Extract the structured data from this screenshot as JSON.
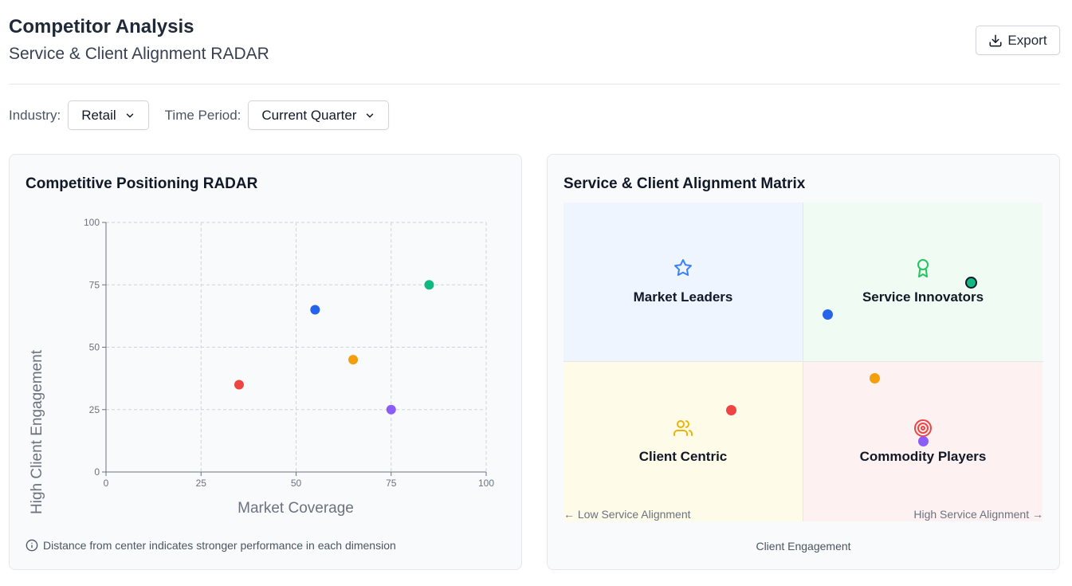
{
  "header": {
    "title": "Competitor Analysis",
    "subtitle": "Service & Client Alignment RADAR",
    "export_label": "Export"
  },
  "filters": {
    "industry_label": "Industry:",
    "industry_value": "Retail",
    "period_label": "Time Period:",
    "period_value": "Current Quarter"
  },
  "radar_panel": {
    "title": "Competitive Positioning RADAR",
    "note": "Distance from center indicates stronger performance in each dimension"
  },
  "chart_data": {
    "type": "scatter",
    "xlabel": "Market Coverage",
    "ylabel": "High Client Engagement",
    "xlim": [
      0,
      100
    ],
    "ylim": [
      0,
      100
    ],
    "xticks": [
      0,
      25,
      50,
      75,
      100
    ],
    "yticks": [
      0,
      25,
      50,
      75,
      100
    ],
    "grid": true,
    "points": [
      {
        "x": 35,
        "y": 35,
        "color": "#ef4444"
      },
      {
        "x": 55,
        "y": 65,
        "color": "#2563eb"
      },
      {
        "x": 65,
        "y": 45,
        "color": "#f59e0b"
      },
      {
        "x": 75,
        "y": 25,
        "color": "#8b5cf6"
      },
      {
        "x": 85,
        "y": 75,
        "color": "#10b981"
      }
    ]
  },
  "matrix_panel": {
    "title": "Service & Client Alignment Matrix",
    "quadrants": {
      "top_left": "Market Leaders",
      "top_right": "Service Innovators",
      "bottom_left": "Client Centric",
      "bottom_right": "Commodity Players"
    },
    "axis_left": "← Low Service Alignment",
    "axis_right": "High Service Alignment →",
    "axis_bottom": "Client Engagement",
    "icons": {
      "top_left": "star-icon",
      "top_right": "award-icon",
      "bottom_left": "users-icon",
      "bottom_right": "target-icon"
    },
    "colors": {
      "star": "#3b82f6",
      "award": "#22c55e",
      "users": "#eab308",
      "target": "#ef4444"
    }
  }
}
